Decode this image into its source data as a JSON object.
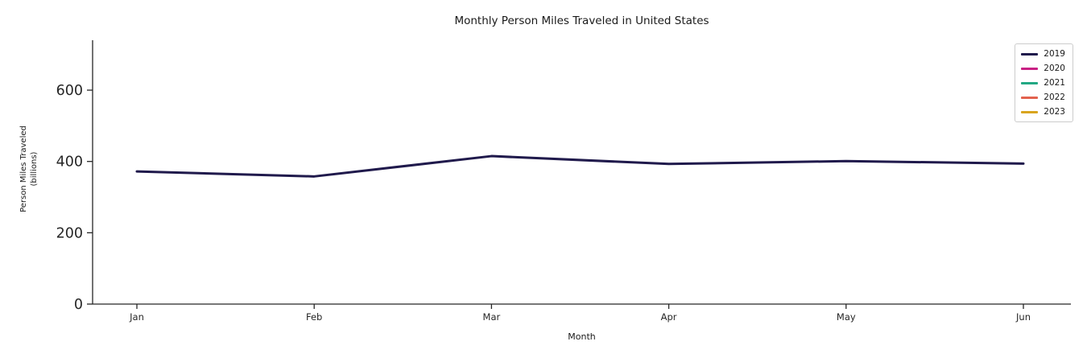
{
  "title": "Monthly Person Miles Traveled in United States",
  "xlabel": "Month",
  "ylabel_line1": "Person Miles Traveled",
  "ylabel_line2": "(billions)",
  "chart_data": {
    "type": "line",
    "title": "Monthly Person Miles Traveled in United States",
    "xlabel": "Month",
    "ylabel": "Person Miles Traveled (billions)",
    "categories": [
      "Jan",
      "Feb",
      "Mar",
      "Apr",
      "May",
      "Jun"
    ],
    "series": [
      {
        "name": "2019",
        "color": "#201a4c",
        "values": [
          372,
          358,
          415,
          393,
          401,
          394
        ]
      },
      {
        "name": "2020",
        "color": "#c92184",
        "values": []
      },
      {
        "name": "2021",
        "color": "#23a884",
        "values": []
      },
      {
        "name": "2022",
        "color": "#e2624e",
        "values": []
      },
      {
        "name": "2023",
        "color": "#d9a41e",
        "values": []
      }
    ],
    "ylim": [
      0,
      740
    ],
    "yticks": [
      0,
      200,
      400,
      600
    ],
    "grid": false,
    "legend_position": "upper right",
    "axis_color": "#262626"
  }
}
